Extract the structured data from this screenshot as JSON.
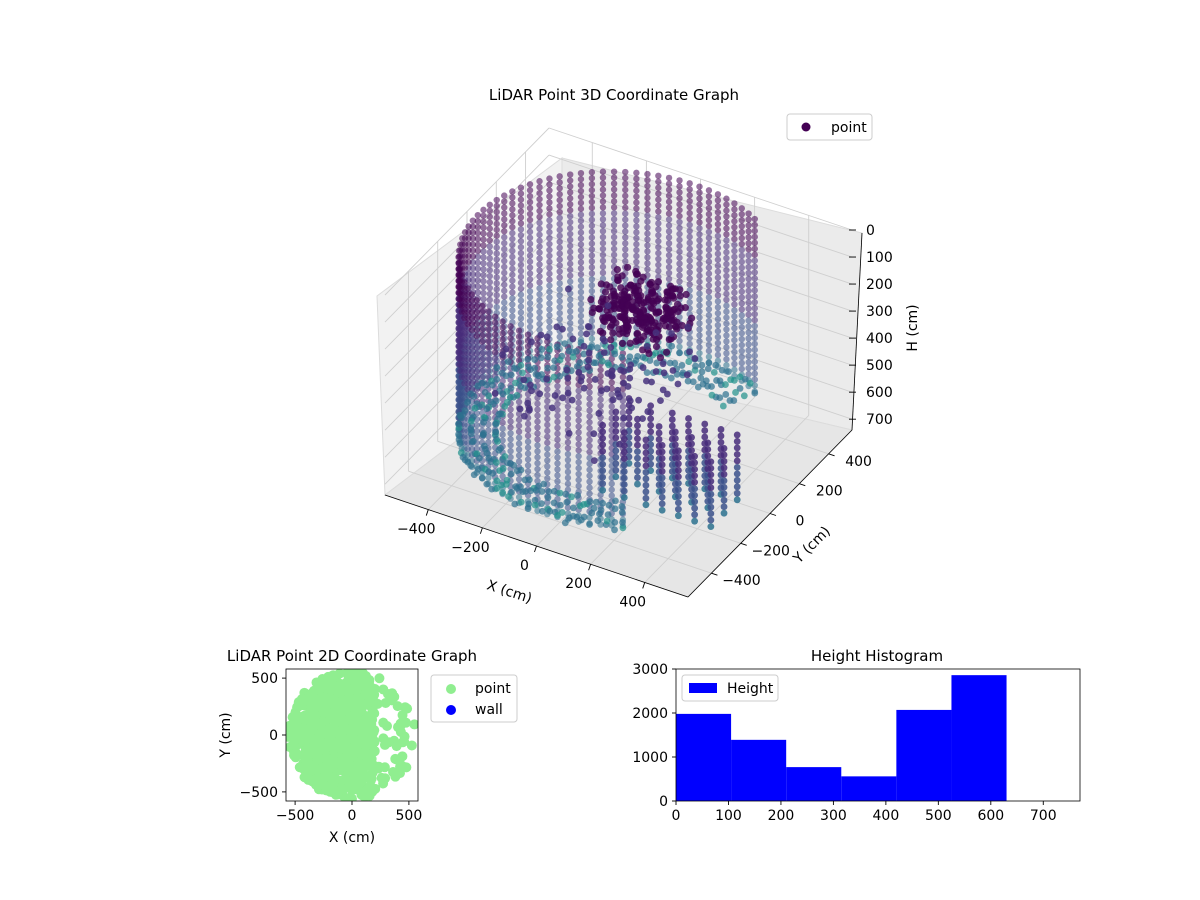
{
  "chart_data": [
    {
      "type": "scatter",
      "projection": "3d",
      "title": "LiDAR Point 3D Coordinate Graph",
      "xlabel": "X (cm)",
      "ylabel": "Y (cm)",
      "zlabel": "H (cm)",
      "xlim": [
        -560,
        560
      ],
      "ylim": [
        -560,
        560
      ],
      "zlim": [
        740,
        0
      ],
      "x_ticks": [
        "−400",
        "−200",
        "0",
        "200",
        "400"
      ],
      "y_ticks": [
        "−400",
        "−200",
        "0",
        "200",
        "400"
      ],
      "z_ticks": [
        "0",
        "100",
        "200",
        "300",
        "400",
        "500",
        "600",
        "700"
      ],
      "legend": [
        {
          "label": "point",
          "color": "#440154"
        }
      ],
      "legend_position": "top-right",
      "colormap": "viridis",
      "grid": true,
      "series": [
        {
          "name": "point",
          "description_of_structure": "cylindrical wall of radius ~520 cm covering the left half-circle, interior cluster near top, vertical column stacks toward +x",
          "wall_radius": 520,
          "wall_angle_range_deg": [
            45,
            315
          ],
          "wall_height_range": [
            0,
            650
          ],
          "inner_cluster_center": [
            60,
            40,
            100
          ],
          "column_stacks_x": [
            120,
            200,
            280,
            340,
            400,
            460,
            520
          ]
        }
      ]
    },
    {
      "type": "scatter",
      "title": "LiDAR Point 2D Coordinate Graph",
      "xlabel": "X (cm)",
      "ylabel": "Y (cm)",
      "xlim": [
        -580,
        580
      ],
      "ylim": [
        -580,
        580
      ],
      "x_ticks": [
        "−500",
        "0",
        "500"
      ],
      "y_ticks": [
        "−500",
        "0",
        "500"
      ],
      "legend": [
        {
          "label": "point",
          "color": "#90ee90"
        },
        {
          "label": "wall",
          "color": "#0000ff"
        }
      ],
      "legend_position": "outside-right",
      "grid": false
    },
    {
      "type": "bar",
      "title": "Height Histogram",
      "xlim": [
        0,
        770
      ],
      "ylim": [
        0,
        3000
      ],
      "x_ticks": [
        "0",
        "100",
        "200",
        "300",
        "400",
        "500",
        "600",
        "700"
      ],
      "y_ticks": [
        "0",
        "1000",
        "2000",
        "3000"
      ],
      "legend": [
        {
          "label": "Height",
          "color": "#0000ff"
        }
      ],
      "legend_position": "top-left",
      "bar_color": "#0000ff",
      "bins": [
        {
          "start": 0,
          "end": 105,
          "count": 1980
        },
        {
          "start": 105,
          "end": 210,
          "count": 1390
        },
        {
          "start": 210,
          "end": 315,
          "count": 770
        },
        {
          "start": 315,
          "end": 420,
          "count": 560
        },
        {
          "start": 420,
          "end": 525,
          "count": 2070
        },
        {
          "start": 525,
          "end": 630,
          "count": 2860
        }
      ]
    }
  ]
}
